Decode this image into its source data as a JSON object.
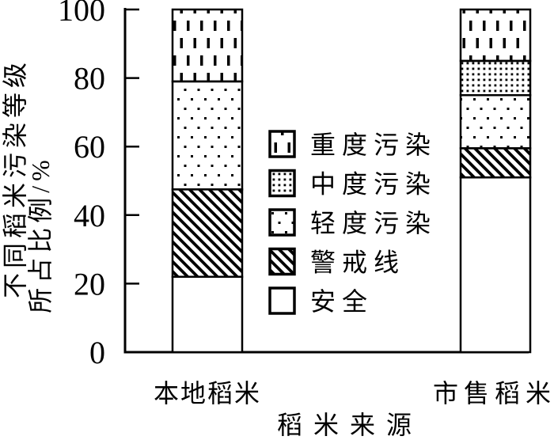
{
  "chart_data": {
    "type": "bar",
    "stacked": true,
    "title": "",
    "xlabel": "稻米来源",
    "ylabel_lines": [
      "不同稻米污染等级",
      "所占比例/%"
    ],
    "ylim": [
      0,
      100
    ],
    "yticks": [
      0,
      20,
      40,
      60,
      80,
      100
    ],
    "grid": false,
    "categories": [
      "本地稻米",
      "市售稻米"
    ],
    "series": [
      {
        "name": "安全",
        "pattern": "plain-white",
        "values": [
          22,
          51
        ]
      },
      {
        "name": "警戒线",
        "pattern": "diagonal-hatch",
        "values": [
          25.5,
          8.5
        ]
      },
      {
        "name": "轻度污染",
        "pattern": "sparse-dots",
        "values": [
          31.5,
          15.5
        ]
      },
      {
        "name": "中度污染",
        "pattern": "dense-dots",
        "values": [
          0,
          10
        ]
      },
      {
        "name": "重度污染",
        "pattern": "vertical-dashes",
        "values": [
          21,
          15
        ]
      }
    ],
    "legend": {
      "position": "center-between-bars",
      "items": [
        {
          "label": "重度污染",
          "pattern": "vertical-dashes"
        },
        {
          "label": "中度污染",
          "pattern": "dense-dots"
        },
        {
          "label": "轻度污染",
          "pattern": "sparse-dots"
        },
        {
          "label": "警戒线",
          "pattern": "diagonal-hatch"
        },
        {
          "label": "安全",
          "pattern": "plain-white"
        }
      ]
    },
    "colors": {
      "foreground": "#000000",
      "background": "#ffffff"
    }
  }
}
